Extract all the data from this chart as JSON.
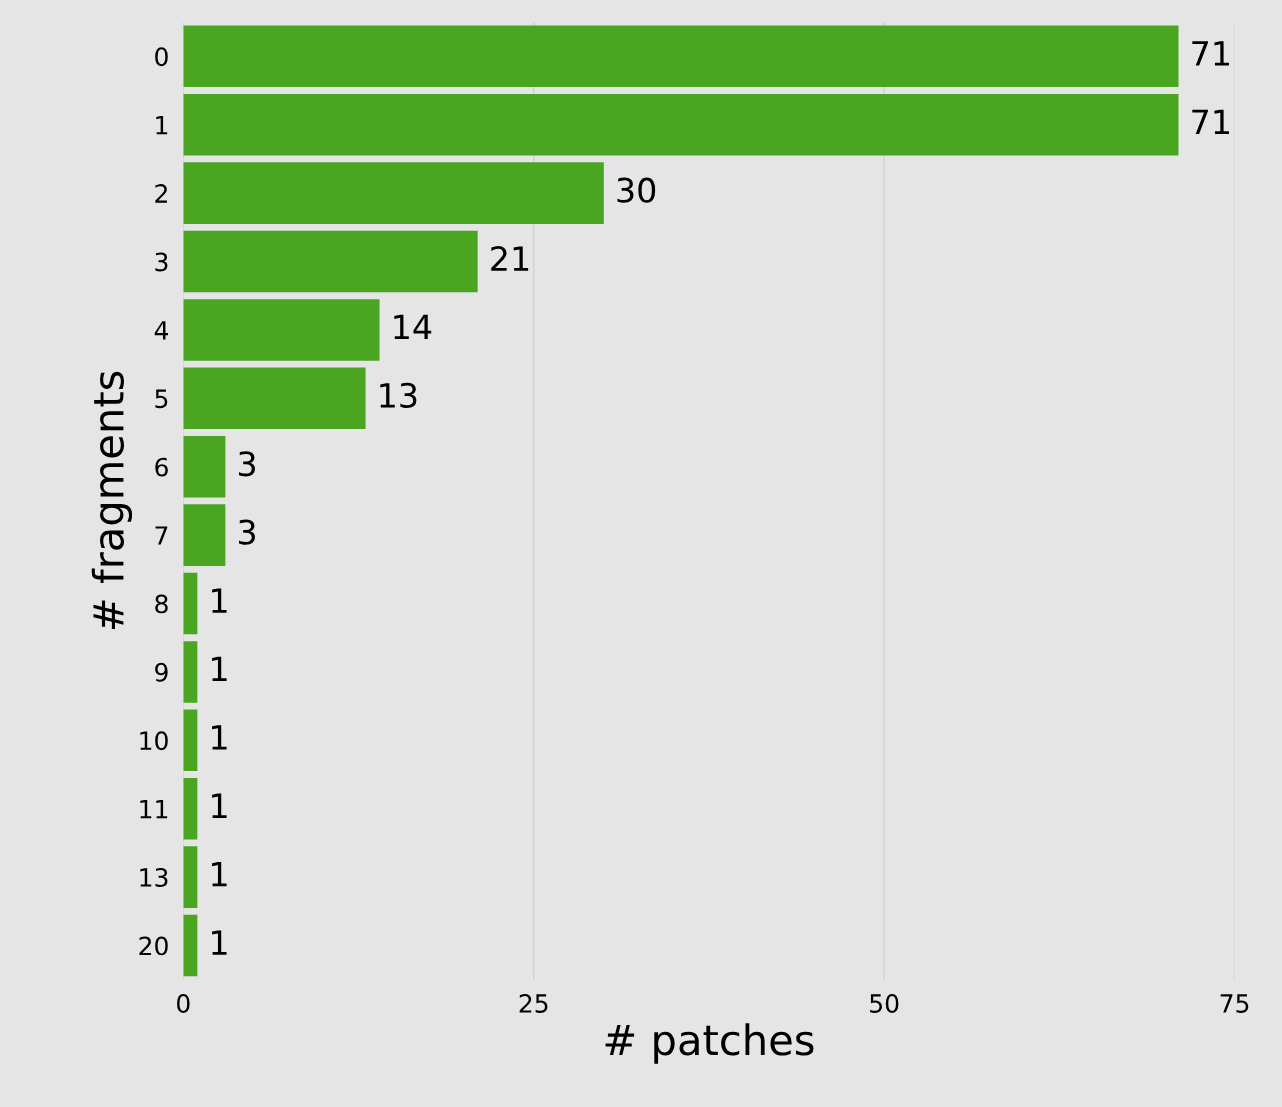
{
  "chart_data": {
    "type": "bar",
    "orientation": "horizontal",
    "xlabel": "# patches",
    "ylabel": "# fragments",
    "categories": [
      "0",
      "1",
      "2",
      "3",
      "4",
      "5",
      "6",
      "7",
      "8",
      "9",
      "10",
      "11",
      "13",
      "20"
    ],
    "values": [
      71,
      71,
      30,
      21,
      14,
      13,
      3,
      3,
      1,
      1,
      1,
      1,
      1,
      1
    ],
    "color": "#4aa520",
    "xlim": [
      0,
      75
    ],
    "xticks": [
      0,
      25,
      50,
      75
    ],
    "grid": "x",
    "data_labels": true
  }
}
